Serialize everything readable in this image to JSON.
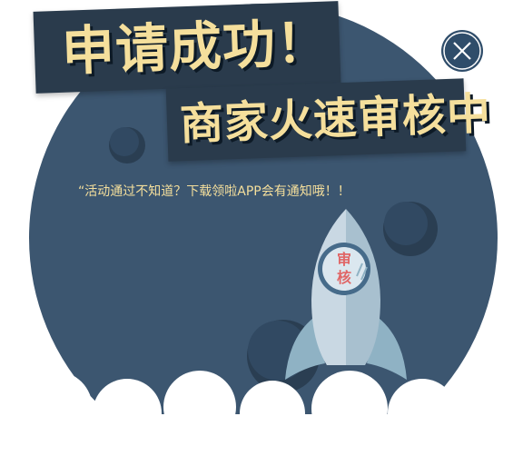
{
  "dialog": {
    "title_line1": "申请成功！",
    "title_line2": "商家火速审核中",
    "subtitle": "“活动通过不知道？下载领啦APP会有通知哦！！",
    "close_icon": "close-icon",
    "rocket_badge_line1": "审",
    "rocket_badge_line2": "核"
  },
  "colors": {
    "planet": "#3c5670",
    "banner": "#2a3b4c",
    "accent_text": "#f5df9c",
    "close_button": "#2f4d6a",
    "badge_text": "#e06666"
  }
}
